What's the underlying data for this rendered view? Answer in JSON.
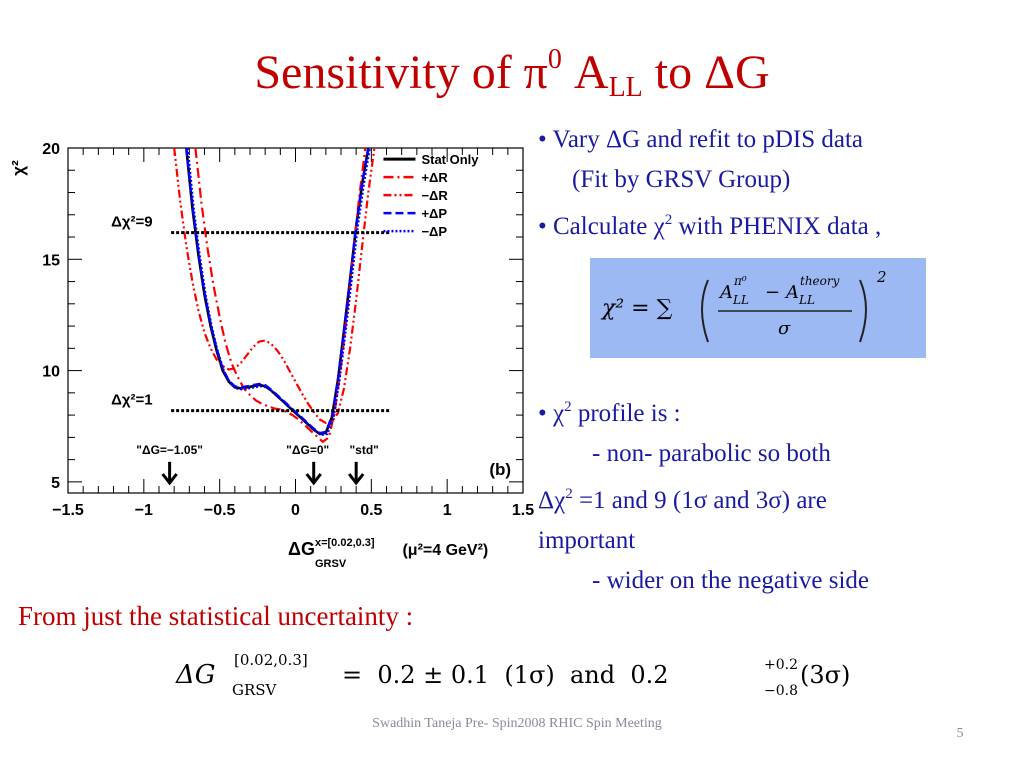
{
  "slide": {
    "title_main": "Sensitivity of π",
    "title_sup": "0",
    "title_mid": " A",
    "title_sub": "LL",
    "title_end": " to ΔG",
    "bullets": {
      "b1": "• Vary ΔG and refit to pDIS data",
      "b1_sub": "(Fit by GRSV Group)",
      "b2_pre": "• Calculate χ",
      "b2_sup": "2",
      "b2_post": " with PHENIX data ,",
      "b3_pre": "•  χ",
      "b3_sup": "2",
      "b3_post": "  profile is :",
      "b3_sub1": "- non- parabolic  so both",
      "b3_cont_pre": "Δχ",
      "b3_cont_sup": "2",
      "b3_cont_post": " =1 and 9 (1σ and 3σ) are",
      "b3_cont2": "important",
      "b3_sub2": "- wider on the negative side"
    },
    "formula": {
      "lhs": "χ² = ∑",
      "numerator_a": "A",
      "numerator_a_sup": "π⁰",
      "numerator_a_sub": "LL",
      "minus": "−",
      "numerator_b": "A",
      "numerator_b_sup": "theory",
      "numerator_b_sub": "LL",
      "denominator": "σ",
      "power": "2"
    },
    "note": "From just the statistical uncertainty :",
    "result": {
      "lhs": "ΔG",
      "lhs_sup": "[0.02,0.3]",
      "lhs_sub": "GRSV",
      "value": "=  0.2 ± 0.1  (1σ)  and  0.2",
      "err_up": "+0.2",
      "err_down": "−0.8",
      "tail": "(3σ)"
    },
    "footer": "Swadhin Taneja  Pre- Spin2008  RHIC Spin Meeting",
    "page_number": "5"
  },
  "chart_data": {
    "type": "line",
    "panel_label": "(b)",
    "ylabel": "χ²",
    "xlabel_main": "ΔG",
    "xlabel_sup": "x=[0.02,0.3]",
    "xlabel_sub": "GRSV",
    "xlabel_tail": " (μ²=4 GeV²)",
    "xlim": [
      -1.5,
      1.5
    ],
    "ylim": [
      4.5,
      20
    ],
    "xticks": [
      "−1.5",
      "−1",
      "−0.5",
      "0",
      "0.5",
      "1",
      "1.5"
    ],
    "xtick_values": [
      -1.5,
      -1,
      -0.5,
      0,
      0.5,
      1,
      1.5
    ],
    "yticks": [
      "5",
      "10",
      "15",
      "20"
    ],
    "ytick_values": [
      5,
      10,
      15,
      20
    ],
    "hlines": [
      {
        "label": "Δχ²=9",
        "y": 16.2,
        "x_from": -0.82,
        "x_to": 0.62
      },
      {
        "label": "Δχ²=1",
        "y": 8.2,
        "x_from": -0.82,
        "x_to": 0.62
      }
    ],
    "arrows": [
      {
        "label": "\"ΔG=−1.05\"",
        "x": -0.83
      },
      {
        "label": "\"ΔG=0\"",
        "x": 0.12
      },
      {
        "label": "\"std\"",
        "x": 0.4
      }
    ],
    "series": [
      {
        "name": "Stat Only",
        "color": "#000000",
        "dash": "",
        "x": [
          -0.72,
          -0.68,
          -0.64,
          -0.6,
          -0.56,
          -0.52,
          -0.48,
          -0.44,
          -0.4,
          -0.36,
          -0.32,
          -0.28,
          -0.24,
          -0.2,
          -0.16,
          -0.12,
          -0.08,
          -0.04,
          0.0,
          0.04,
          0.08,
          0.12,
          0.16,
          0.2,
          0.24,
          0.28,
          0.32,
          0.36,
          0.4,
          0.44,
          0.48
        ],
        "y": [
          20,
          17.3,
          15.2,
          13.4,
          12.0,
          10.9,
          10.0,
          9.5,
          9.25,
          9.2,
          9.25,
          9.3,
          9.35,
          9.3,
          9.1,
          8.85,
          8.6,
          8.35,
          8.1,
          7.85,
          7.6,
          7.35,
          7.15,
          7.2,
          7.9,
          9.6,
          11.8,
          14.1,
          16.5,
          18.4,
          20
        ]
      },
      {
        "name": "+ΔR",
        "color": "#ff0000",
        "dash": "10,4,2,4",
        "x": [
          -0.66,
          -0.62,
          -0.58,
          -0.54,
          -0.5,
          -0.46,
          -0.42,
          -0.38,
          -0.34,
          -0.3,
          -0.26,
          -0.22,
          -0.18,
          -0.14,
          -0.1,
          -0.06,
          -0.02,
          0.02,
          0.06,
          0.1,
          0.14,
          0.18,
          0.22,
          0.26,
          0.3,
          0.34,
          0.38,
          0.42,
          0.46
        ],
        "y": [
          20,
          17.5,
          15.5,
          13.8,
          12.4,
          11.2,
          10.3,
          9.7,
          9.2,
          8.9,
          8.65,
          8.5,
          8.4,
          8.3,
          8.25,
          8.15,
          8.0,
          7.8,
          7.55,
          7.3,
          7.05,
          6.8,
          7.0,
          8.2,
          10.2,
          12.6,
          15.2,
          17.8,
          20
        ]
      },
      {
        "name": "−ΔR",
        "color": "#ff0000",
        "dash": "8,3,2,3,2,3",
        "x": [
          -0.8,
          -0.76,
          -0.72,
          -0.68,
          -0.64,
          -0.6,
          -0.56,
          -0.52,
          -0.48,
          -0.44,
          -0.4,
          -0.36,
          -0.32,
          -0.28,
          -0.24,
          -0.2,
          -0.16,
          -0.12,
          -0.08,
          -0.04,
          0.0,
          0.04,
          0.08,
          0.12,
          0.16,
          0.2,
          0.24,
          0.28,
          0.32,
          0.36,
          0.4,
          0.44,
          0.48,
          0.52
        ],
        "y": [
          20,
          17.6,
          15.6,
          14.0,
          12.7,
          11.7,
          11.0,
          10.5,
          10.2,
          10.05,
          10.1,
          10.35,
          10.7,
          11.05,
          11.3,
          11.35,
          11.2,
          10.9,
          10.5,
          10.0,
          9.5,
          9.0,
          8.55,
          8.15,
          7.8,
          7.65,
          7.7,
          8.1,
          9.2,
          11.0,
          13.2,
          15.6,
          18.0,
          20
        ]
      },
      {
        "name": "+ΔP",
        "color": "#0000ff",
        "dash": "8,4",
        "x": [
          -0.72,
          -0.68,
          -0.64,
          -0.6,
          -0.56,
          -0.52,
          -0.48,
          -0.44,
          -0.4,
          -0.36,
          -0.32,
          -0.28,
          -0.24,
          -0.2,
          -0.16,
          -0.12,
          -0.08,
          -0.04,
          0.0,
          0.04,
          0.08,
          0.12,
          0.16,
          0.2,
          0.24,
          0.28,
          0.32,
          0.36,
          0.4,
          0.44,
          0.48
        ],
        "y": [
          20,
          17.4,
          15.3,
          13.5,
          12.1,
          11.0,
          10.1,
          9.55,
          9.3,
          9.25,
          9.3,
          9.35,
          9.4,
          9.35,
          9.15,
          8.9,
          8.65,
          8.4,
          8.15,
          7.9,
          7.65,
          7.4,
          7.2,
          7.25,
          7.95,
          9.65,
          11.85,
          14.15,
          16.55,
          18.45,
          20
        ]
      },
      {
        "name": "−ΔP",
        "color": "#0000ff",
        "dash": "2,2",
        "x": [
          -0.71,
          -0.67,
          -0.63,
          -0.59,
          -0.55,
          -0.51,
          -0.47,
          -0.43,
          -0.39,
          -0.35,
          -0.31,
          -0.27,
          -0.23,
          -0.19,
          -0.15,
          -0.11,
          -0.07,
          -0.03,
          0.01,
          0.05,
          0.09,
          0.13,
          0.17,
          0.21,
          0.25,
          0.29,
          0.33,
          0.37,
          0.41,
          0.45,
          0.49
        ],
        "y": [
          20,
          17.2,
          15.1,
          13.3,
          11.9,
          10.8,
          9.95,
          9.45,
          9.2,
          9.15,
          9.2,
          9.25,
          9.3,
          9.25,
          9.05,
          8.8,
          8.55,
          8.3,
          8.05,
          7.8,
          7.55,
          7.3,
          7.1,
          7.15,
          7.85,
          9.55,
          11.75,
          14.05,
          16.45,
          18.35,
          20
        ]
      }
    ]
  }
}
